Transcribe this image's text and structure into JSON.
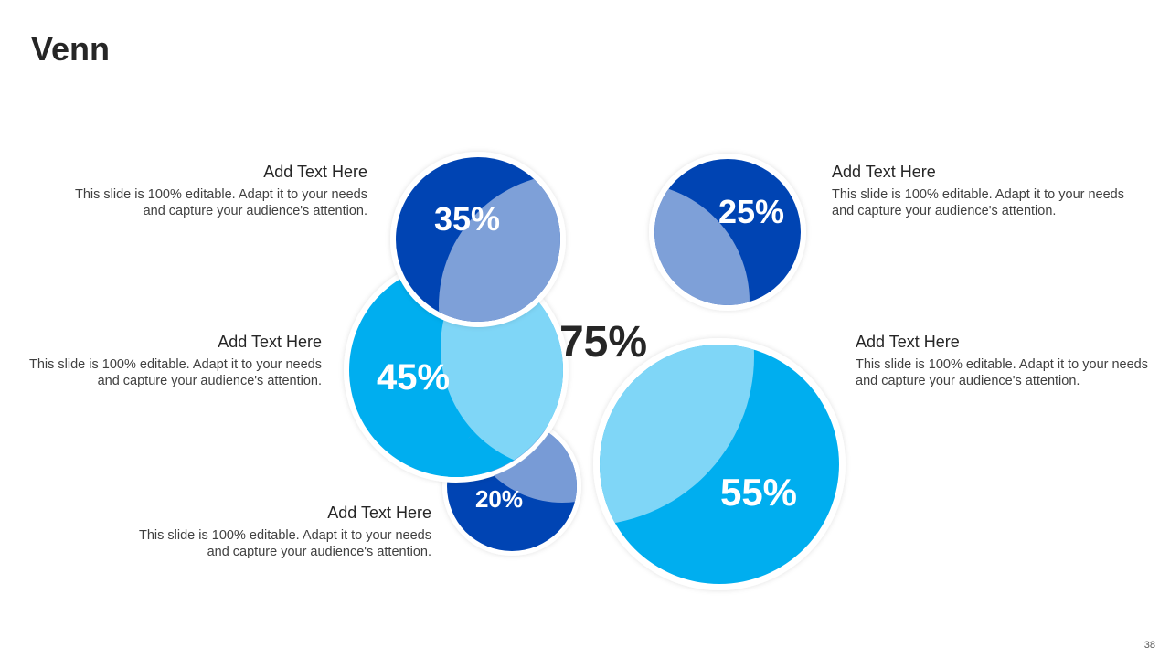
{
  "slide": {
    "title": "Venn",
    "page_number": "38"
  },
  "center_label": "75%",
  "colors": {
    "dark_blue": "#0044B3",
    "light_blue": "#00AEEF",
    "overlap_dark": "#7EA0D8",
    "overlap_light": "#7FD6F7",
    "ring": "#EFEFEF"
  },
  "circles": [
    {
      "label": "35%",
      "color": "dark_blue"
    },
    {
      "label": "45%",
      "color": "light_blue"
    },
    {
      "label": "20%",
      "color": "dark_blue"
    },
    {
      "label": "25%",
      "color": "dark_blue"
    },
    {
      "label": "55%",
      "color": "light_blue"
    }
  ],
  "callouts": [
    {
      "heading": "Add Text Here",
      "body": "This slide is 100% editable. Adapt it to your needs and capture your audience's attention."
    },
    {
      "heading": "Add Text Here",
      "body": "This slide is 100% editable. Adapt it to your needs and capture your audience's attention."
    },
    {
      "heading": "Add Text Here",
      "body": "This slide is 100% editable. Adapt it to your needs and capture your audience's attention."
    },
    {
      "heading": "Add Text Here",
      "body": "This slide is 100% editable. Adapt it to your needs and capture your audience's attention."
    },
    {
      "heading": "Add Text Here",
      "body": "This slide is 100% editable. Adapt it to your needs and capture your audience's attention."
    }
  ]
}
